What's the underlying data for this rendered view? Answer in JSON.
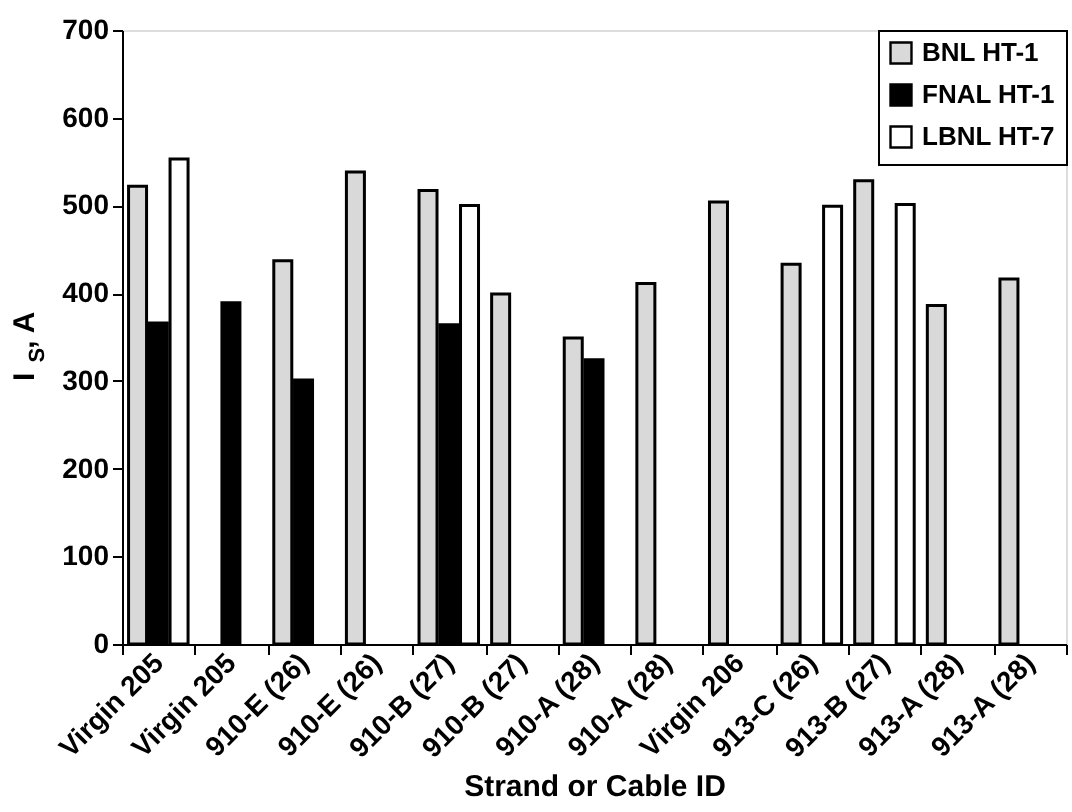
{
  "chart_data": {
    "type": "bar",
    "xlabel": "Strand or Cable ID",
    "ylabel": "I$_{S}$, A",
    "categories": [
      "Virgin 205",
      "Virgin 205",
      "910-E (26)",
      "910-E (26)",
      "910-B (27)",
      "910-B (27)",
      "910-A (28)",
      "910-A (28)",
      "Virgin 206",
      "913-C (26)",
      "913-B (27)",
      "913-A (28)",
      "913-A (28)"
    ],
    "series": [
      {
        "name": "BNL HT-1",
        "color": "#d9d9d9",
        "values": [
          522,
          null,
          437,
          538,
          517,
          399,
          349,
          411,
          504,
          433,
          528,
          386,
          416
        ]
      },
      {
        "name": "FNAL HT-1",
        "color": "#000000",
        "values": [
          366,
          389,
          301,
          null,
          364,
          null,
          324,
          null,
          null,
          null,
          null,
          null,
          null
        ]
      },
      {
        "name": "LBNL HT-7",
        "color": "#ffffff",
        "values": [
          553,
          null,
          null,
          null,
          500,
          null,
          null,
          null,
          null,
          499,
          501,
          null,
          null
        ]
      }
    ],
    "ylim": [
      0,
      700
    ],
    "yticks": [
      0,
      100,
      200,
      300,
      400,
      500,
      600,
      700
    ],
    "legend": "top right",
    "grid": false
  }
}
